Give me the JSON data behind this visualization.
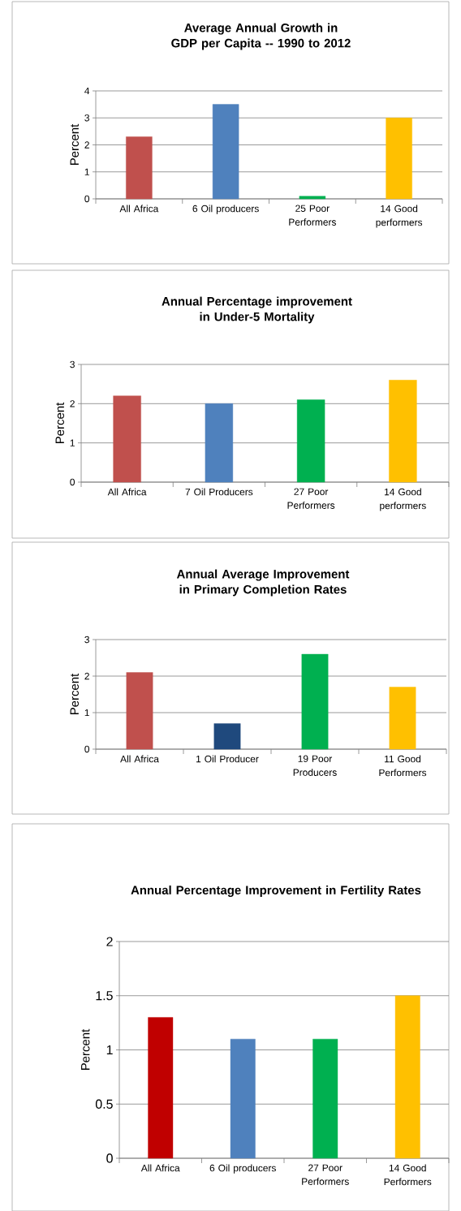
{
  "chart_data": [
    {
      "type": "bar",
      "title": "Average Annual Growth in GDP per Capita -- 1990 to 2012",
      "ylabel": "Percent",
      "categories": [
        "All Africa",
        "6 Oil producers",
        "25 Poor Performers",
        "14 Good performers"
      ],
      "values": [
        2.3,
        3.5,
        0.1,
        3.0
      ],
      "colors": [
        "#c0504d",
        "#4f81bd",
        "#00b050",
        "#ffc000"
      ],
      "ylim": [
        0,
        4
      ],
      "yticks": [
        0,
        1,
        2,
        3,
        4
      ],
      "grid": "y"
    },
    {
      "type": "bar",
      "title": "Annual Percentage improvement in Under-5 Mortality",
      "ylabel": "Percent",
      "categories": [
        "All Africa",
        "7 Oil Producers",
        "27 Poor Performers",
        "14 Good performers"
      ],
      "values": [
        2.2,
        2.0,
        2.1,
        2.6
      ],
      "colors": [
        "#c0504d",
        "#4f81bd",
        "#00b050",
        "#ffc000"
      ],
      "ylim": [
        0,
        3
      ],
      "yticks": [
        0,
        1,
        2,
        3
      ],
      "grid": "y"
    },
    {
      "type": "bar",
      "title": "Annual Average Improvement in Primary Completion Rates",
      "ylabel": "Percent",
      "categories": [
        "All Africa",
        "1 Oil Producer",
        "19 Poor Producers",
        "11 Good Performers"
      ],
      "values": [
        2.1,
        0.7,
        2.6,
        1.7
      ],
      "colors": [
        "#c0504d",
        "#1f497d",
        "#00b050",
        "#ffc000"
      ],
      "ylim": [
        0,
        3
      ],
      "yticks": [
        0,
        1,
        2,
        3
      ],
      "grid": "y"
    },
    {
      "type": "bar",
      "title": "Annual Percentage Improvement in Fertility Rates",
      "ylabel": "Percent",
      "categories": [
        "All Africa",
        "6 Oil producers",
        "27 Poor Performers",
        "14 Good Performers"
      ],
      "values": [
        1.3,
        1.1,
        1.1,
        1.5
      ],
      "colors": [
        "#c00000",
        "#4f81bd",
        "#00b050",
        "#ffc000"
      ],
      "ylim": [
        0,
        2
      ],
      "yticks": [
        0,
        0.5,
        1,
        1.5,
        2
      ],
      "grid": "y"
    }
  ]
}
